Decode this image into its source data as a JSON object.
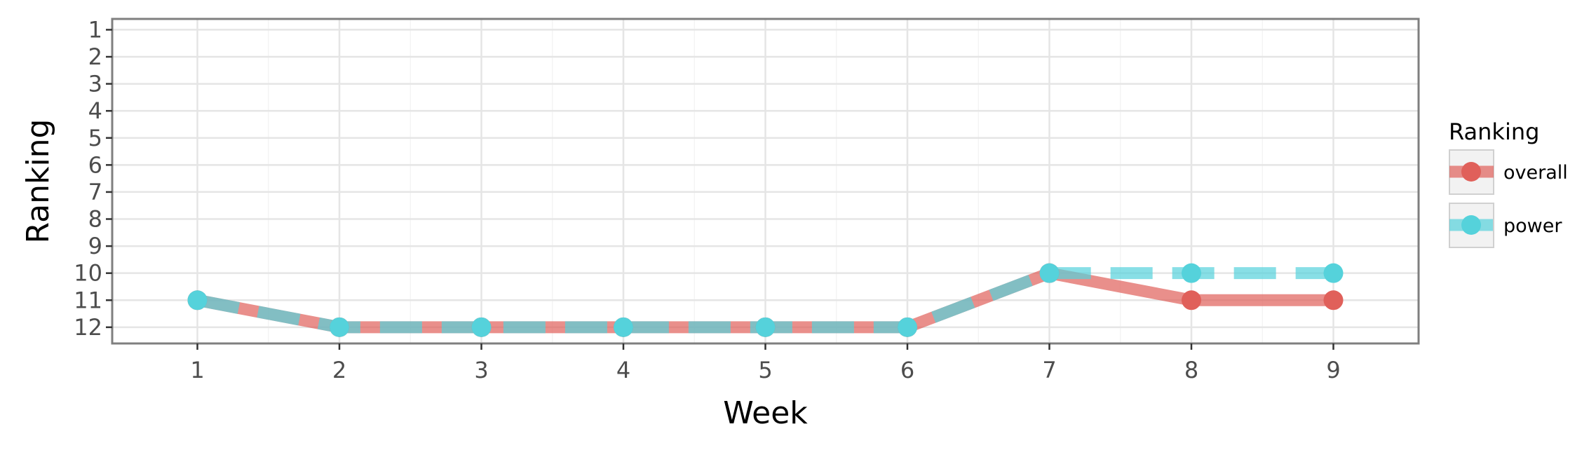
{
  "chart_data": {
    "type": "line",
    "title": "",
    "xlabel": "Week",
    "ylabel": "Ranking",
    "x": [
      1,
      2,
      3,
      4,
      5,
      6,
      7,
      8,
      9
    ],
    "xlim": [
      0.4,
      9.6
    ],
    "ylim": [
      12.6,
      0.6
    ],
    "y_reversed": true,
    "x_ticks": [
      1,
      2,
      3,
      4,
      5,
      6,
      7,
      8,
      9
    ],
    "y_ticks": [
      1,
      2,
      3,
      4,
      5,
      6,
      7,
      8,
      9,
      10,
      11,
      12
    ],
    "grid": true,
    "legend": {
      "title": "Ranking",
      "position": "right"
    },
    "series": [
      {
        "name": "overall",
        "values": [
          11,
          12,
          12,
          12,
          12,
          12,
          10,
          11,
          11
        ],
        "color": "#E0605A",
        "linestyle": "solid"
      },
      {
        "name": "power",
        "values": [
          11,
          12,
          12,
          12,
          12,
          12,
          10,
          10,
          10
        ],
        "color": "#55D2DB",
        "linestyle": "dashed"
      }
    ]
  }
}
